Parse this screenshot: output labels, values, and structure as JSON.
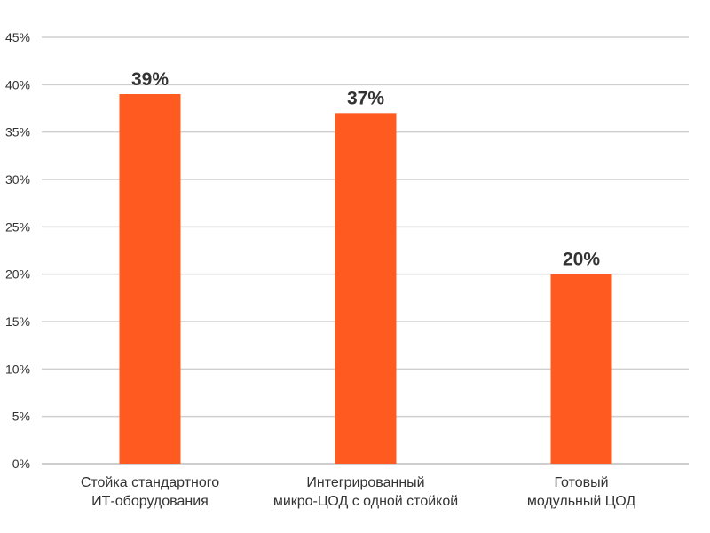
{
  "chart_data": {
    "type": "bar",
    "categories": [
      [
        "Стойка стандартного",
        "ИТ-оборудования"
      ],
      [
        "Интегрированный",
        "микро-ЦОД с одной стойкой"
      ],
      [
        "Готовый",
        "модульный ЦОД"
      ]
    ],
    "values": [
      39,
      37,
      20
    ],
    "data_labels": [
      "39%",
      "37%",
      "20%"
    ],
    "y_ticks": [
      "0%",
      "5%",
      "10%",
      "15%",
      "20%",
      "25%",
      "30%",
      "35%",
      "40%",
      "45%"
    ],
    "ylim": [
      0,
      45
    ],
    "grid": true,
    "legend": "none",
    "title": "",
    "xlabel": "",
    "ylabel": "",
    "bar_color": "#FF5A1F"
  }
}
